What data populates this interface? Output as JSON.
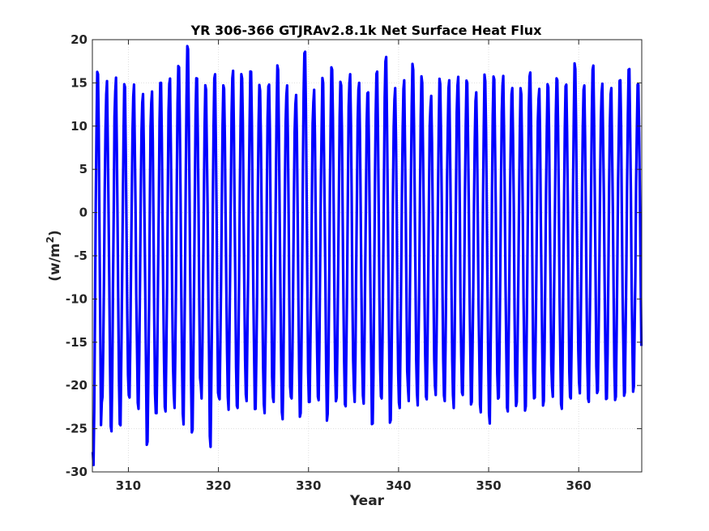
{
  "chart_data": {
    "type": "line",
    "title": "YR 306-366 GTJRAv2.8.1k Net Surface Heat Flux",
    "xlabel": "Year",
    "ylabel_main": "(w/m",
    "ylabel_sup": "2",
    "ylabel_close": ")",
    "xlim": [
      306,
      367
    ],
    "ylim": [
      -30,
      20
    ],
    "xticks": [
      310,
      320,
      330,
      340,
      350,
      360
    ],
    "xtick_labels": [
      "310",
      "320",
      "330",
      "340",
      "350",
      "360"
    ],
    "yticks": [
      -30,
      -25,
      -20,
      -15,
      -10,
      -5,
      0,
      5,
      10,
      15,
      20
    ],
    "ytick_labels": [
      "-30",
      "-25",
      "-20",
      "-15",
      "-10",
      "-5",
      "0",
      "5",
      "10",
      "15",
      "20"
    ],
    "grid": true,
    "series": [
      {
        "color": "#0000ff",
        "sampling": "monthly",
        "x_start": 306.0,
        "annual_max": [
          16.0,
          15.2,
          15.6,
          14.5,
          14.8,
          13.7,
          14.0,
          15.0,
          15.5,
          16.8,
          18.9,
          15.5,
          14.2,
          16.0,
          14.3,
          16.4,
          15.5,
          16.3,
          14.1,
          14.8,
          16.5,
          14.7,
          13.6,
          18.6,
          14.2,
          15.0,
          16.5,
          14.7,
          16.0,
          15.0,
          13.9,
          16.3,
          18.0,
          14.4,
          15.3,
          16.5,
          15.0,
          13.5,
          14.9,
          15.3,
          15.7,
          15.0,
          13.9,
          15.2,
          15.4,
          15.8,
          14.4,
          13.7,
          16.2,
          14.3,
          14.5,
          15.3,
          14.8,
          16.6,
          14.7,
          17.0,
          14.9,
          14.4,
          15.3,
          16.6,
          14.8
        ],
        "annual_min": [
          -29.2,
          -21.3,
          -25.3,
          -24.6,
          -21.4,
          -22.7,
          -26.5,
          -23.2,
          -23.0,
          -22.6,
          -24.5,
          -25.1,
          -21.5,
          -27.1,
          -21.6,
          -22.8,
          -22.6,
          -21.8,
          -22.7,
          -23.2,
          -21.9,
          -23.9,
          -21.5,
          -23.2,
          -21.9,
          -21.7,
          -23.3,
          -21.4,
          -22.4,
          -21.9,
          -22.1,
          -24.4,
          -21.5,
          -24.0,
          -22.6,
          -21.8,
          -22.3,
          -21.6,
          -21.1,
          -21.8,
          -22.6,
          -21.1,
          -21.9,
          -23.1,
          -24.4,
          -21.4,
          -23.0,
          -21.9,
          -22.4,
          -21.4,
          -21.8,
          -21.3,
          -22.7,
          -21.5,
          -20.9,
          -21.9,
          -20.6,
          -21.5,
          -21.3,
          -20.8,
          -20.1
        ]
      }
    ]
  }
}
